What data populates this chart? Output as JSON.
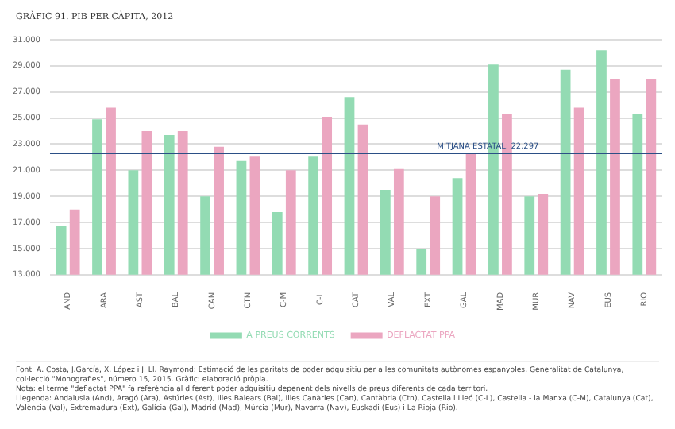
{
  "chart_data": {
    "type": "bar",
    "title": "GRÀFIC 91. PIB PER CÀPITA, 2012",
    "categories": [
      "AND",
      "ARA",
      "AST",
      "BAL",
      "CAN",
      "CTN",
      "C-M",
      "C-L",
      "CAT",
      "VAL",
      "EXT",
      "GAL",
      "MAD",
      "MUR",
      "NAV",
      "EUS",
      "RIO"
    ],
    "series": [
      {
        "name": "A PREUS CORRENTS",
        "color": "#93dbb3",
        "values": [
          16700,
          24900,
          21000,
          23700,
          19000,
          21700,
          17800,
          22100,
          26600,
          19500,
          15000,
          20400,
          29100,
          19000,
          28700,
          30200,
          25300
        ]
      },
      {
        "name": "DEFLACTAT PPA",
        "color": "#eba6c0",
        "values": [
          18000,
          25800,
          24000,
          24000,
          22800,
          22100,
          21000,
          25100,
          24500,
          21100,
          19000,
          22300,
          25300,
          19200,
          25800,
          28000,
          28000
        ]
      }
    ],
    "ylim": [
      13000,
      31000
    ],
    "yticks": [
      {
        "value": 13000,
        "label": "13.000"
      },
      {
        "value": 15000,
        "label": "15.000"
      },
      {
        "value": 17000,
        "label": "17.000"
      },
      {
        "value": 19000,
        "label": "19.000"
      },
      {
        "value": 21000,
        "label": "21.000"
      },
      {
        "value": 23000,
        "label": "23.000"
      },
      {
        "value": 25000,
        "label": "25.000"
      },
      {
        "value": 27000,
        "label": "27.000"
      },
      {
        "value": 29000,
        "label": "29.000"
      },
      {
        "value": 31000,
        "label": "31.000"
      }
    ],
    "grid": "y",
    "legend": "bottom",
    "ref_lines": [
      {
        "axis": "y",
        "value": 22297,
        "label": "MITJANA ESTATAL: 22.297",
        "color": "#2b4f86"
      }
    ],
    "annotations": [
      "Font: A. Costa, J.García, X. López i J. Ll. Raymond: Estimació de les paritats de poder adquisitiu per a les comunitats autònomes espanyoles. Generalitat de Catalunya, col·lecció \"Monografies\", número 15, 2015. Gràfic: elaboració pròpia.",
      "Nota: el terme \"deflactat PPA\" fa referència al diferent poder adquisitiu depenent dels nivells de preus diferents de cada territori.",
      "Llegenda: Andalusia (And), Aragó (Ara), Astúries (Ast), Illes Balears (Bal), Illes Canàries (Can), Cantàbria (Ctn), Castella i Lleó (C-L), Castella - la Manxa (C-M), Catalunya (Cat), València (Val), Extremadura (Ext), Galícia (Gal), Madrid (Mad), Múrcia (Mur), Navarra (Nav), Euskadi (Eus) i La Rioja (Rio)."
    ]
  }
}
